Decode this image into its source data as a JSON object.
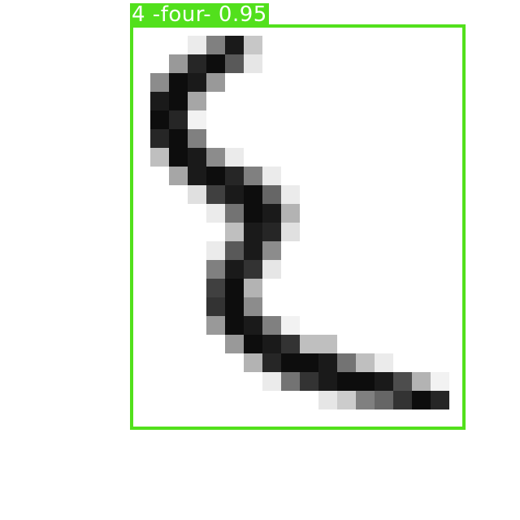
{
  "detection": {
    "label": "4 -four- 0.95",
    "color": "#52e01c"
  },
  "digit_image": {
    "pixels": [
      [
        3,
        3,
        0.92
      ],
      [
        4,
        3,
        0.5
      ],
      [
        5,
        3,
        0.1
      ],
      [
        6,
        3,
        0.78
      ],
      [
        2,
        4,
        0.6
      ],
      [
        3,
        4,
        0.15
      ],
      [
        4,
        4,
        0.05
      ],
      [
        5,
        4,
        0.35
      ],
      [
        6,
        4,
        0.9
      ],
      [
        1,
        5,
        0.55
      ],
      [
        2,
        5,
        0.05
      ],
      [
        3,
        5,
        0.1
      ],
      [
        4,
        5,
        0.6
      ],
      [
        1,
        6,
        0.1
      ],
      [
        2,
        6,
        0.05
      ],
      [
        3,
        6,
        0.65
      ],
      [
        1,
        7,
        0.05
      ],
      [
        2,
        7,
        0.15
      ],
      [
        3,
        7,
        0.95
      ],
      [
        1,
        8,
        0.15
      ],
      [
        2,
        8,
        0.05
      ],
      [
        3,
        8,
        0.5
      ],
      [
        1,
        9,
        0.75
      ],
      [
        2,
        9,
        0.05
      ],
      [
        3,
        9,
        0.1
      ],
      [
        4,
        9,
        0.55
      ],
      [
        5,
        9,
        0.92
      ],
      [
        2,
        10,
        0.65
      ],
      [
        3,
        10,
        0.1
      ],
      [
        4,
        10,
        0.05
      ],
      [
        5,
        10,
        0.15
      ],
      [
        6,
        10,
        0.5
      ],
      [
        7,
        10,
        0.92
      ],
      [
        3,
        11,
        0.88
      ],
      [
        4,
        11,
        0.25
      ],
      [
        5,
        11,
        0.1
      ],
      [
        6,
        11,
        0.05
      ],
      [
        7,
        11,
        0.4
      ],
      [
        8,
        11,
        0.92
      ],
      [
        4,
        12,
        0.92
      ],
      [
        5,
        12,
        0.45
      ],
      [
        6,
        12,
        0.05
      ],
      [
        7,
        12,
        0.1
      ],
      [
        8,
        12,
        0.7
      ],
      [
        5,
        13,
        0.75
      ],
      [
        6,
        13,
        0.1
      ],
      [
        7,
        13,
        0.15
      ],
      [
        8,
        13,
        0.88
      ],
      [
        4,
        14,
        0.92
      ],
      [
        5,
        14,
        0.35
      ],
      [
        6,
        14,
        0.1
      ],
      [
        7,
        14,
        0.55
      ],
      [
        4,
        15,
        0.5
      ],
      [
        5,
        15,
        0.1
      ],
      [
        6,
        15,
        0.2
      ],
      [
        7,
        15,
        0.9
      ],
      [
        4,
        16,
        0.25
      ],
      [
        5,
        16,
        0.05
      ],
      [
        6,
        16,
        0.7
      ],
      [
        4,
        17,
        0.2
      ],
      [
        5,
        17,
        0.05
      ],
      [
        6,
        17,
        0.55
      ],
      [
        4,
        18,
        0.6
      ],
      [
        5,
        18,
        0.05
      ],
      [
        6,
        18,
        0.1
      ],
      [
        7,
        18,
        0.5
      ],
      [
        8,
        18,
        0.95
      ],
      [
        5,
        19,
        0.6
      ],
      [
        6,
        19,
        0.05
      ],
      [
        7,
        19,
        0.1
      ],
      [
        8,
        19,
        0.2
      ],
      [
        9,
        19,
        0.75
      ],
      [
        10,
        19,
        0.75
      ],
      [
        6,
        20,
        0.7
      ],
      [
        7,
        20,
        0.15
      ],
      [
        8,
        20,
        0.05
      ],
      [
        9,
        20,
        0.05
      ],
      [
        10,
        20,
        0.1
      ],
      [
        11,
        20,
        0.45
      ],
      [
        12,
        20,
        0.75
      ],
      [
        13,
        20,
        0.92
      ],
      [
        7,
        21,
        0.92
      ],
      [
        8,
        21,
        0.45
      ],
      [
        9,
        21,
        0.2
      ],
      [
        10,
        21,
        0.1
      ],
      [
        11,
        21,
        0.05
      ],
      [
        12,
        21,
        0.05
      ],
      [
        13,
        21,
        0.1
      ],
      [
        14,
        21,
        0.3
      ],
      [
        15,
        21,
        0.7
      ],
      [
        16,
        21,
        0.95
      ],
      [
        10,
        22,
        0.9
      ],
      [
        11,
        22,
        0.8
      ],
      [
        12,
        22,
        0.5
      ],
      [
        13,
        22,
        0.4
      ],
      [
        14,
        22,
        0.2
      ],
      [
        15,
        22,
        0.05
      ],
      [
        16,
        22,
        0.15
      ]
    ]
  }
}
